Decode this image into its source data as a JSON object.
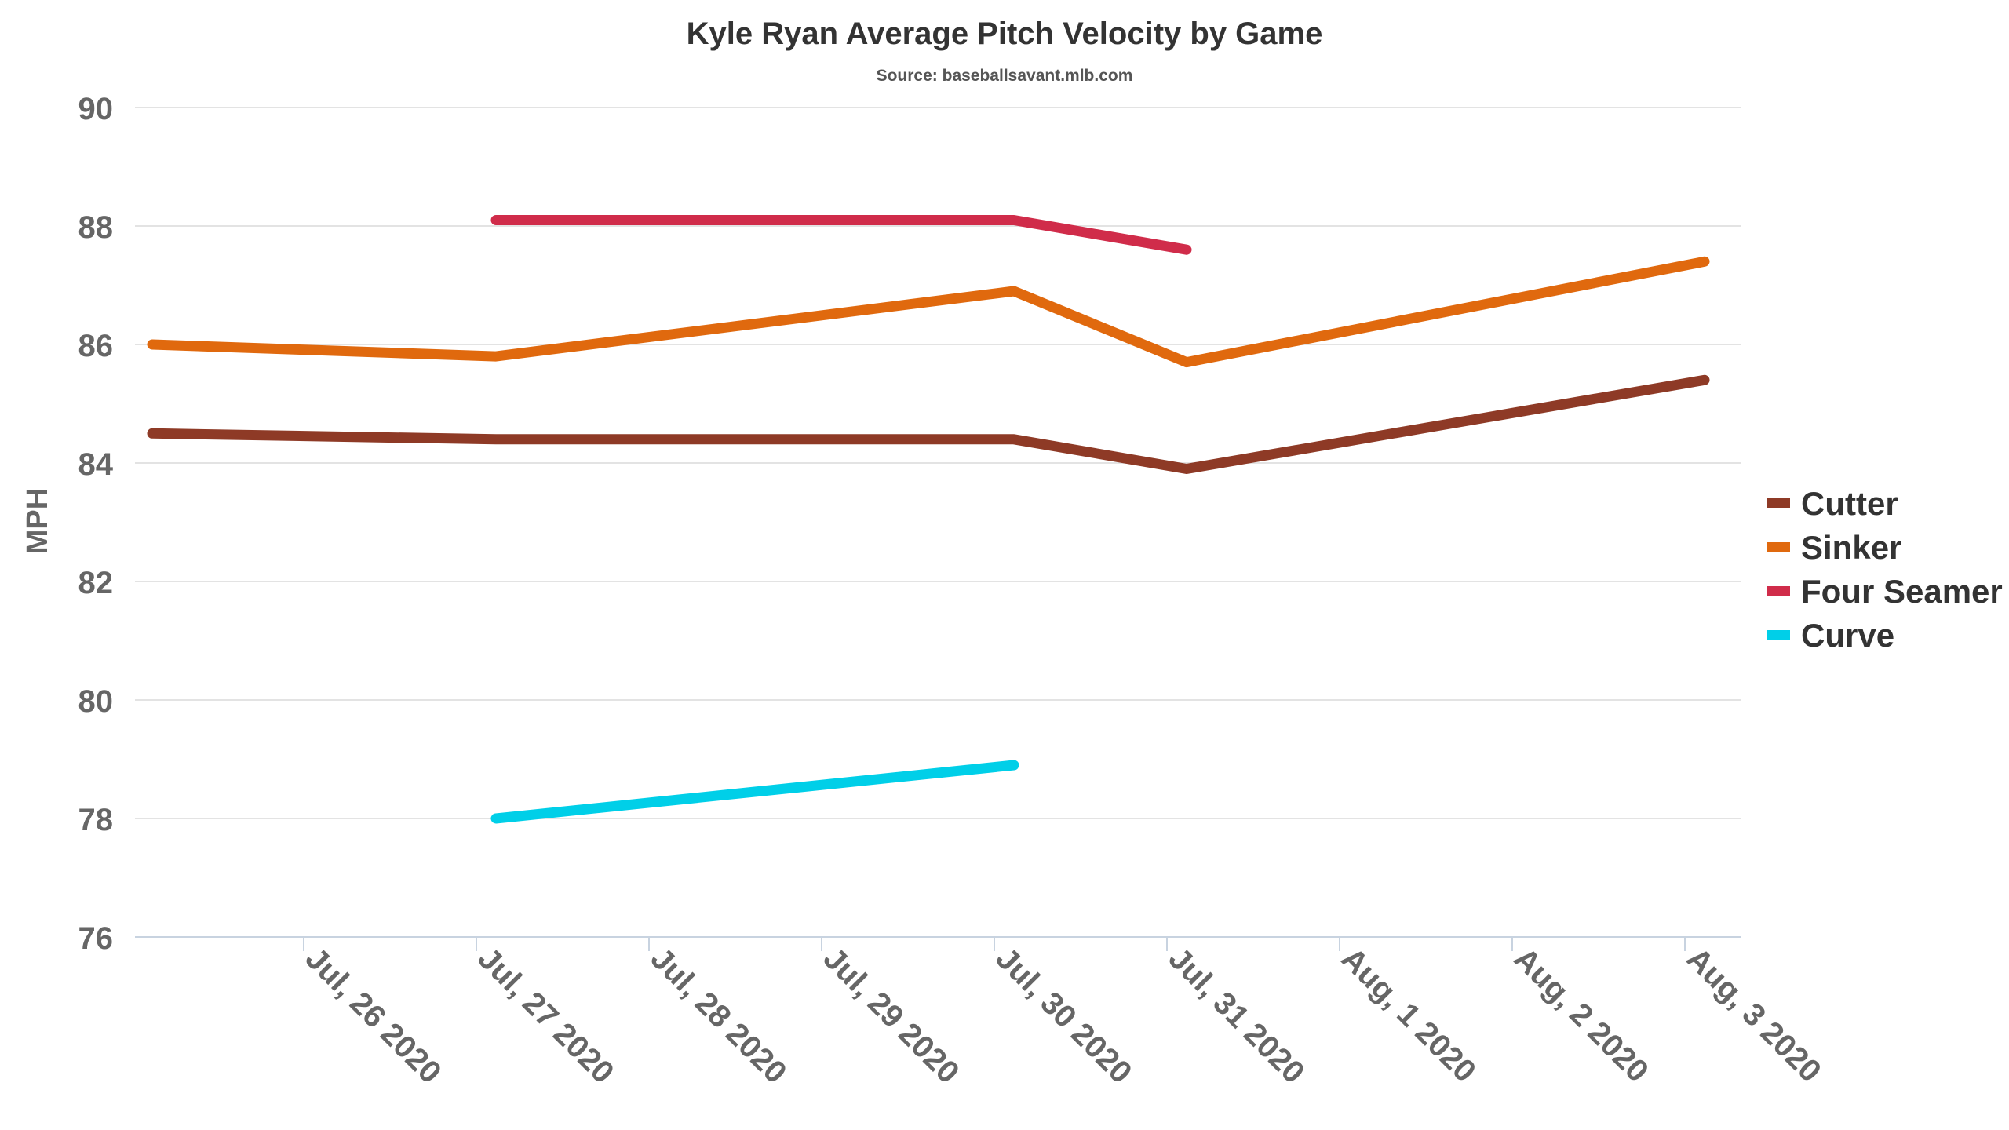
{
  "chart_data": {
    "type": "line",
    "title": "Kyle Ryan Average Pitch Velocity by Game",
    "subtitle": "Source: baseballsavant.mlb.com",
    "ylabel": "MPH",
    "xlabel": "",
    "ylim": [
      76,
      90
    ],
    "yticks": [
      76,
      78,
      80,
      82,
      84,
      86,
      88,
      90
    ],
    "xlim": [
      "2020-07-25",
      "2020-08-03"
    ],
    "xticks": [
      {
        "date": "2020-07-26",
        "label": "Jul, 26 2020"
      },
      {
        "date": "2020-07-27",
        "label": "Jul, 27 2020"
      },
      {
        "date": "2020-07-28",
        "label": "Jul, 28 2020"
      },
      {
        "date": "2020-07-29",
        "label": "Jul, 29 2020"
      },
      {
        "date": "2020-07-30",
        "label": "Jul, 30 2020"
      },
      {
        "date": "2020-07-31",
        "label": "Jul, 31 2020"
      },
      {
        "date": "2020-08-01",
        "label": "Aug, 1 2020"
      },
      {
        "date": "2020-08-02",
        "label": "Aug, 2 2020"
      },
      {
        "date": "2020-08-03",
        "label": "Aug, 3 2020"
      }
    ],
    "grid": true,
    "legend_position": "right",
    "series": [
      {
        "name": "Cutter",
        "color": "#8e3a26",
        "points": [
          {
            "x": "2020-07-25",
            "y": 84.5
          },
          {
            "x": "2020-07-27",
            "y": 84.4
          },
          {
            "x": "2020-07-30",
            "y": 84.4
          },
          {
            "x": "2020-07-31",
            "y": 83.9
          },
          {
            "x": "2020-08-03",
            "y": 85.4
          }
        ]
      },
      {
        "name": "Sinker",
        "color": "#e0690e",
        "points": [
          {
            "x": "2020-07-25",
            "y": 86.0
          },
          {
            "x": "2020-07-27",
            "y": 85.8
          },
          {
            "x": "2020-07-30",
            "y": 86.9
          },
          {
            "x": "2020-07-31",
            "y": 85.7
          },
          {
            "x": "2020-08-03",
            "y": 87.4
          }
        ]
      },
      {
        "name": "Four Seamer",
        "color": "#d02c4a",
        "points": [
          {
            "x": "2020-07-27",
            "y": 88.1
          },
          {
            "x": "2020-07-30",
            "y": 88.1
          },
          {
            "x": "2020-07-31",
            "y": 87.6
          }
        ]
      },
      {
        "name": "Curve",
        "color": "#00cfe8",
        "points": [
          {
            "x": "2020-07-27",
            "y": 78.0
          },
          {
            "x": "2020-07-30",
            "y": 78.9
          }
        ]
      }
    ]
  }
}
